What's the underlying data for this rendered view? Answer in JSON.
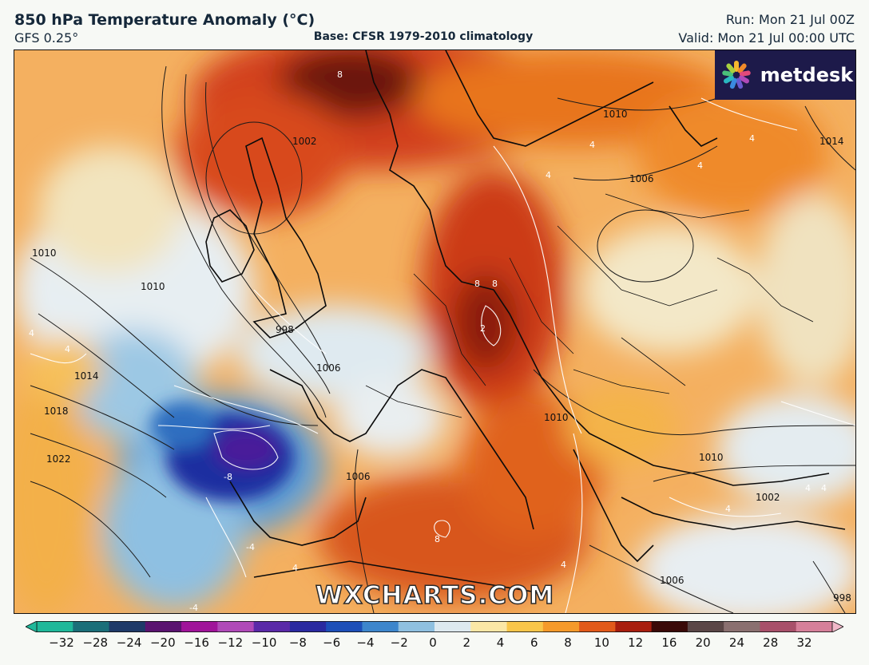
{
  "header": {
    "title": "850 hPa Temperature Anomaly (°C)",
    "model": "GFS 0.25°",
    "base": "Base: CFSR 1979-2010 climatology",
    "run": "Run: Mon 21 Jul 00Z",
    "valid": "Valid: Mon 21 Jul 00:00 UTC"
  },
  "logo": {
    "text": "metdesk",
    "icon": "metdesk-flower-icon"
  },
  "watermark": "WXCHARTS.COM",
  "colorbar": {
    "labels": [
      "−32",
      "−28",
      "−24",
      "−20",
      "−16",
      "−12",
      "−10",
      "−8",
      "−6",
      "−4",
      "−2",
      "0",
      "2",
      "4",
      "6",
      "8",
      "10",
      "12",
      "16",
      "20",
      "24",
      "28",
      "32"
    ],
    "colors": [
      "#1fb89a",
      "#1b6f79",
      "#1e3a68",
      "#5a1470",
      "#a0149a",
      "#b04ab8",
      "#5a2aa8",
      "#2a2aa0",
      "#1d4fb8",
      "#3d86cc",
      "#8fc0e0",
      "#dde9ef",
      "#fbe7a6",
      "#f9c64a",
      "#f59a2a",
      "#e25a1a",
      "#a81e0e",
      "#3a0a08",
      "#5a4646",
      "#8a7070",
      "#a8506a",
      "#d6809a",
      "#f0b8c8"
    ]
  },
  "map": {
    "isobar_labels": [
      "1010",
      "1010",
      "1014",
      "1018",
      "1022",
      "1002",
      "998",
      "1006",
      "1010",
      "1006",
      "1014",
      "1010",
      "1010",
      "1006",
      "1006",
      "1002",
      "998"
    ],
    "anomaly_labels": [
      "8",
      "8",
      "8",
      "2",
      "-8",
      "4",
      "4",
      "4",
      "4",
      "4",
      "4",
      "4",
      "-4",
      "-4",
      "8",
      "4",
      "4",
      "4",
      "4"
    ]
  }
}
